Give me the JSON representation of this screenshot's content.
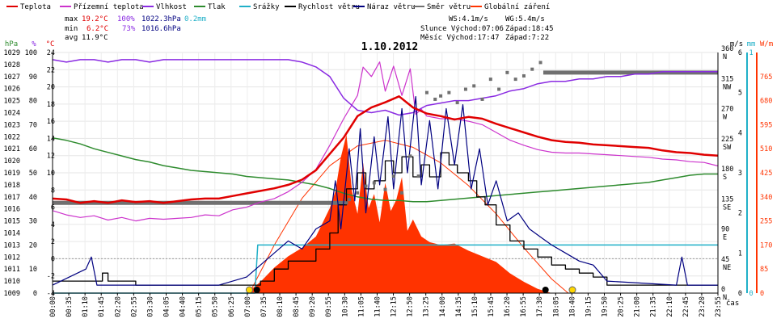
{
  "chart_data": {
    "type": "line",
    "title": "1.10.2012",
    "colors": {
      "teplota": "#e00000",
      "prizemni": "#cc33cc",
      "vlhkost": "#8a2be2",
      "tlak": "#2e8b2e",
      "srazky": "#20b0c8",
      "rychlost": "#000000",
      "naraz": "#000080",
      "smer": "#707070",
      "zareni": "#ff3300"
    },
    "legend": [
      {
        "key": "teplota",
        "label": "Teplota"
      },
      {
        "key": "prizemni",
        "label": "Přízemní teplota"
      },
      {
        "key": "vlhkost",
        "label": "Vlhkost"
      },
      {
        "key": "tlak",
        "label": "Tlak"
      },
      {
        "key": "srazky",
        "label": "Srážky"
      },
      {
        "key": "rychlost",
        "label": "Rychlost větru"
      },
      {
        "key": "naraz",
        "label": "Náraz větru"
      },
      {
        "key": "smer",
        "label": "Směr větru"
      },
      {
        "key": "zareni",
        "label": "Globální záření"
      }
    ],
    "stats": {
      "max_label": "max",
      "min_label": "min",
      "avg_label": "avg",
      "max": {
        "temp": "19.2°C",
        "hum": "100%",
        "press": "1022.3hPa",
        "rain": "0.2mm"
      },
      "min": {
        "temp": "6.2°C",
        "hum": "73%",
        "press": "1016.6hPa"
      },
      "avg": {
        "temp": "11.9°C"
      }
    },
    "info": {
      "ws": "WS:4.1m/s",
      "wg": "WG:5.4m/s",
      "slunce": "Slunce Východ:07:06",
      "slunce_zapad": "Západ:18:45",
      "mesic": "Měsíc  Východ:17:47",
      "mesic_zapad": "Západ:7:22"
    },
    "axes": {
      "hpa_title": "hPa",
      "pct_title": "%",
      "c_title": "°C",
      "ms_title": "m/s",
      "mm_title": "mm",
      "wm_title": "W/m",
      "x_title": "čas",
      "hpa_ticks": [
        "1009",
        "1010",
        "1011",
        "1012",
        "1013",
        "1014",
        "1015",
        "1016",
        "1017",
        "1018",
        "1019",
        "1020",
        "1021",
        "1022",
        "1023",
        "1024",
        "1025",
        "1026",
        "1027",
        "1028",
        "1029"
      ],
      "pct_ticks": [
        "0",
        "10",
        "20",
        "30",
        "40",
        "50",
        "60",
        "70",
        "80",
        "90",
        "100"
      ],
      "c_ticks": [
        "-4",
        "-2",
        "0",
        "2",
        "4",
        "6",
        "8",
        "10",
        "12",
        "14",
        "16",
        "18",
        "20",
        "22",
        "24"
      ],
      "dir_ticks": [
        {
          "deg": "0",
          "name": "N"
        },
        {
          "deg": "45",
          "name": "NE"
        },
        {
          "deg": "90",
          "name": "E"
        },
        {
          "deg": "135",
          "name": "SE"
        },
        {
          "deg": "180",
          "name": "S"
        },
        {
          "deg": "225",
          "name": "SW"
        },
        {
          "deg": "270",
          "name": "W"
        },
        {
          "deg": "315",
          "name": "NW"
        },
        {
          "deg": "360",
          "name": "N"
        }
      ],
      "ms_ticks": [
        "0",
        "1",
        "2",
        "3",
        "4",
        "5",
        "6"
      ],
      "mm_ticks": [
        "0",
        "1"
      ],
      "wm_ticks": [
        "0",
        "85",
        "170",
        "255",
        "340",
        "425",
        "510",
        "595",
        "680",
        "765"
      ],
      "time_ticks": [
        "00:00",
        "00:35",
        "01:10",
        "01:45",
        "02:20",
        "02:55",
        "03:30",
        "04:05",
        "04:40",
        "05:15",
        "05:50",
        "06:25",
        "07:00",
        "07:35",
        "08:10",
        "08:45",
        "09:20",
        "09:55",
        "10:30",
        "11:05",
        "11:40",
        "12:15",
        "12:50",
        "13:25",
        "14:00",
        "14:35",
        "15:10",
        "15:45",
        "16:20",
        "16:55",
        "17:30",
        "18:05",
        "18:40",
        "19:15",
        "19:50",
        "20:25",
        "21:00",
        "21:35",
        "22:10",
        "22:45",
        "23:20",
        "23:55"
      ]
    },
    "x_range_hours": [
      0,
      24
    ],
    "series": {
      "teplota": {
        "x": [
          0,
          0.5,
          1,
          1.5,
          2,
          2.5,
          3,
          3.5,
          4,
          4.5,
          5,
          5.5,
          6,
          6.5,
          7,
          7.5,
          8,
          8.5,
          9,
          9.5,
          10,
          10.5,
          11,
          11.5,
          12,
          12.5,
          13,
          13.5,
          14,
          14.5,
          15,
          15.5,
          16,
          16.5,
          17,
          17.5,
          18,
          18.5,
          19,
          19.5,
          20,
          20.5,
          21,
          21.5,
          22,
          22.5,
          23,
          23.5,
          24
        ],
        "y": [
          7.0,
          6.9,
          6.5,
          6.7,
          6.5,
          6.8,
          6.6,
          6.7,
          6.5,
          6.7,
          6.9,
          7.0,
          7.0,
          7.3,
          7.6,
          7.9,
          8.2,
          8.6,
          9.2,
          10.3,
          12.2,
          14.1,
          16.6,
          17.6,
          18.2,
          18.9,
          17.6,
          16.9,
          16.6,
          16.2,
          16.5,
          16.3,
          15.7,
          15.2,
          14.7,
          14.2,
          13.8,
          13.6,
          13.5,
          13.3,
          13.2,
          13.1,
          13.0,
          12.9,
          12.6,
          12.4,
          12.3,
          12.1,
          12.0
        ]
      },
      "prizemni": {
        "x": [
          0,
          0.5,
          1,
          1.5,
          2,
          2.5,
          3,
          3.5,
          4,
          4.5,
          5,
          5.5,
          6,
          6.5,
          7,
          7.5,
          8,
          8.5,
          9,
          9.5,
          10,
          10.5,
          11,
          11.2,
          11.5,
          11.8,
          12,
          12.3,
          12.6,
          12.9,
          13.1,
          13.3,
          13.5,
          14,
          14.5,
          15,
          15.5,
          16,
          16.5,
          17,
          17.5,
          18,
          18.5,
          19,
          19.5,
          20,
          20.5,
          21,
          21.5,
          22,
          22.5,
          23,
          23.5,
          24
        ],
        "y": [
          5.6,
          5.1,
          4.8,
          5.0,
          4.5,
          4.8,
          4.4,
          4.7,
          4.6,
          4.7,
          4.8,
          5.1,
          5.0,
          5.7,
          6.0,
          6.6,
          7.0,
          7.8,
          8.9,
          10.4,
          13.2,
          16.3,
          19.0,
          22.3,
          21.2,
          22.9,
          19.5,
          22.4,
          19.0,
          22.1,
          16.8,
          17.4,
          16.6,
          16.3,
          16.3,
          16.0,
          15.6,
          14.7,
          13.8,
          13.2,
          12.7,
          12.4,
          12.3,
          12.3,
          12.2,
          12.1,
          12.0,
          11.9,
          11.8,
          11.6,
          11.5,
          11.3,
          11.2,
          10.8
        ]
      },
      "vlhkost": {
        "x": [
          0,
          0.5,
          1,
          1.5,
          2,
          2.5,
          3,
          3.5,
          4,
          4.5,
          5,
          5.5,
          6,
          6.5,
          7,
          7.5,
          8,
          8.5,
          9,
          9.5,
          10,
          10.5,
          11,
          11.5,
          12,
          12.5,
          13,
          13.5,
          14,
          14.5,
          15,
          15.5,
          16,
          16.5,
          17,
          17.5,
          18,
          18.5,
          19,
          19.5,
          20,
          20.5,
          21,
          21.5,
          22,
          22.5,
          23,
          23.5,
          24
        ],
        "y": [
          97,
          96,
          97,
          97,
          96,
          97,
          97,
          96,
          97,
          97,
          97,
          97,
          97,
          97,
          97,
          97,
          97,
          97,
          96,
          94,
          90,
          81,
          76,
          75,
          76,
          74,
          75,
          78,
          79,
          80,
          80,
          81,
          82,
          84,
          85,
          87,
          88,
          88,
          89,
          89,
          90,
          90,
          91,
          91,
          92,
          92,
          92,
          92,
          92
        ]
      },
      "tlak": {
        "x": [
          0,
          0.5,
          1,
          1.5,
          2,
          2.5,
          3,
          3.5,
          4,
          4.5,
          5,
          5.5,
          6,
          6.5,
          7,
          7.5,
          8,
          8.5,
          9,
          9.5,
          10,
          10.5,
          11,
          11.5,
          12,
          12.5,
          13,
          13.5,
          14,
          14.5,
          15,
          15.5,
          16,
          16.5,
          17,
          17.5,
          18,
          18.5,
          19,
          19.5,
          20,
          20.5,
          21,
          21.5,
          22,
          22.5,
          23,
          23.5,
          24
        ],
        "y": [
          1021.9,
          1021.7,
          1021.4,
          1021.0,
          1020.7,
          1020.4,
          1020.1,
          1019.9,
          1019.6,
          1019.4,
          1019.2,
          1019.1,
          1019.0,
          1018.9,
          1018.7,
          1018.6,
          1018.5,
          1018.4,
          1018.2,
          1018.0,
          1017.7,
          1017.3,
          1017.0,
          1016.8,
          1016.7,
          1016.7,
          1016.6,
          1016.6,
          1016.7,
          1016.8,
          1016.9,
          1017.0,
          1017.1,
          1017.2,
          1017.3,
          1017.4,
          1017.5,
          1017.6,
          1017.7,
          1017.8,
          1017.9,
          1018.0,
          1018.1,
          1018.2,
          1018.4,
          1018.6,
          1018.8,
          1018.9,
          1018.9
        ]
      },
      "srazky": {
        "x": [
          0,
          6.8,
          7.3,
          7.4,
          24
        ],
        "y": [
          0,
          0,
          0,
          0.2,
          0.2
        ]
      },
      "rychlost": {
        "x": [
          0,
          1,
          1.8,
          2,
          3,
          5,
          7,
          7.5,
          8,
          8.5,
          9,
          9.5,
          10,
          10.3,
          10.6,
          11,
          11.3,
          11.6,
          12,
          12.3,
          12.6,
          13,
          13.3,
          13.6,
          14,
          14.3,
          14.6,
          15,
          15.3,
          15.6,
          16,
          16.5,
          17,
          17.5,
          18,
          18.5,
          19,
          19.5,
          20,
          21,
          24
        ],
        "y": [
          0.3,
          0.3,
          0.5,
          0.3,
          0.2,
          0.2,
          0.2,
          0.3,
          0.6,
          0.8,
          0.8,
          1.1,
          1.5,
          2.2,
          2.6,
          3.0,
          2.6,
          2.8,
          3.3,
          3.0,
          3.4,
          2.9,
          3.2,
          2.9,
          3.5,
          3.2,
          3.0,
          2.8,
          2.4,
          2.2,
          1.7,
          1.3,
          1.1,
          0.9,
          0.7,
          0.6,
          0.5,
          0.4,
          0.2,
          0.2,
          0.2
        ]
      },
      "naraz": {
        "x": [
          0,
          1.2,
          1.4,
          1.6,
          3,
          6,
          7,
          7.5,
          8,
          8.5,
          9,
          9.5,
          10,
          10.2,
          10.4,
          10.7,
          10.9,
          11.1,
          11.3,
          11.6,
          11.8,
          12.1,
          12.3,
          12.6,
          12.8,
          13.1,
          13.3,
          13.6,
          13.9,
          14.2,
          14.5,
          14.8,
          15.1,
          15.4,
          15.7,
          16,
          16.4,
          16.8,
          17.2,
          17.6,
          18,
          18.5,
          19,
          19.5,
          20,
          22.5,
          22.7,
          22.9,
          24
        ],
        "y": [
          0.2,
          0.6,
          0.9,
          0.2,
          0.2,
          0.2,
          0.4,
          0.7,
          1.0,
          1.3,
          1.1,
          1.6,
          1.8,
          2.8,
          1.6,
          3.6,
          2.3,
          4.1,
          2.0,
          3.9,
          2.7,
          4.4,
          2.6,
          4.6,
          3.0,
          4.9,
          2.7,
          4.3,
          2.6,
          4.6,
          3.2,
          4.7,
          2.6,
          3.6,
          2.2,
          2.8,
          1.8,
          2.0,
          1.6,
          1.4,
          1.2,
          1.0,
          0.8,
          0.7,
          0.3,
          0.2,
          0.9,
          0.2,
          0.2
        ]
      },
      "smer": {
        "x": [
          0,
          10.6,
          10.7,
          11,
          11.3,
          11.6,
          12,
          12.3,
          12.6,
          12.9,
          13.2,
          13.5,
          13.8,
          14,
          14.3,
          14.6,
          14.9,
          15.2,
          15.5,
          15.8,
          16.1,
          16.4,
          16.7,
          17,
          17.3,
          17.6,
          18,
          24
        ],
        "y": [
          135,
          135,
          140,
          150,
          160,
          165,
          155,
          175,
          150,
          205,
          175,
          300,
          290,
          295,
          300,
          285,
          305,
          310,
          290,
          320,
          305,
          330,
          320,
          325,
          335,
          345,
          330,
          330
        ]
      },
      "zareni": {
        "x": [
          0,
          7.0,
          7.5,
          8,
          8.5,
          9,
          9.5,
          9.8,
          10.0,
          10.2,
          10.4,
          10.6,
          10.8,
          11.0,
          11.2,
          11.4,
          11.6,
          11.8,
          12.0,
          12.2,
          12.4,
          12.6,
          12.8,
          13.0,
          13.3,
          13.6,
          14,
          14.5,
          15,
          15.5,
          16,
          16.5,
          17,
          17.5,
          18,
          24
        ],
        "y": [
          0,
          0,
          40,
          90,
          130,
          160,
          200,
          260,
          300,
          360,
          480,
          560,
          360,
          280,
          460,
          300,
          350,
          250,
          390,
          290,
          330,
          410,
          220,
          260,
          200,
          180,
          170,
          175,
          150,
          130,
          110,
          70,
          40,
          15,
          0,
          0
        ]
      },
      "zareni_max": {
        "x": [
          7.1,
          8,
          9,
          10,
          11,
          12,
          13,
          14,
          15,
          16,
          17,
          18,
          18.6
        ],
        "y": [
          0,
          170,
          335,
          450,
          520,
          540,
          515,
          460,
          380,
          280,
          160,
          50,
          0
        ]
      }
    },
    "markers": {
      "sun_x": [
        7.1,
        18.75
      ],
      "moon_x": [
        7.37,
        17.78
      ]
    }
  }
}
